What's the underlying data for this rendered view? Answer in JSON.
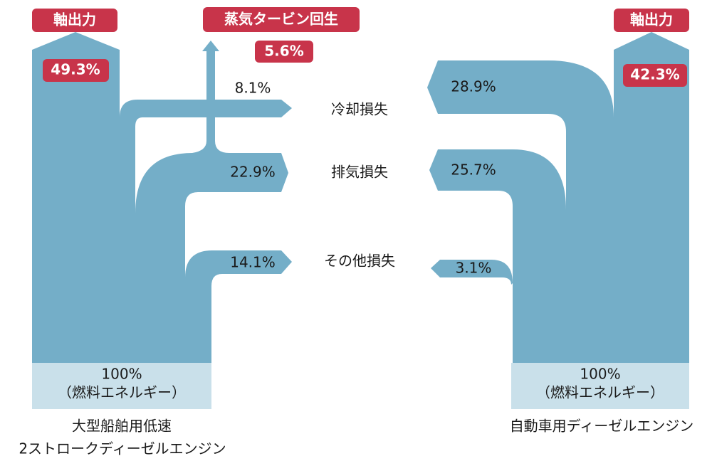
{
  "left": {
    "output_label": "軸出力",
    "output_value": "49.3%",
    "steam_label": "蒸気タービン回生",
    "steam_value": "5.6%",
    "cooling_value": "8.1%",
    "exhaust_value": "22.9%",
    "other_value": "14.1%",
    "base_value": "100%",
    "base_note": "（燃料エネルギー）",
    "caption": [
      "大型船舶用低速",
      "2ストロークディーゼルエンジン"
    ]
  },
  "center": {
    "cooling_label": "冷却損失",
    "exhaust_label": "排気損失",
    "other_label": "その他損失"
  },
  "right": {
    "output_label": "軸出力",
    "output_value": "42.3%",
    "cooling_value": "28.9%",
    "exhaust_value": "25.7%",
    "other_value": "3.1%",
    "base_value": "100%",
    "base_note": "（燃料エネルギー）",
    "caption": [
      "自動車用ディーゼルエンジン"
    ]
  }
}
